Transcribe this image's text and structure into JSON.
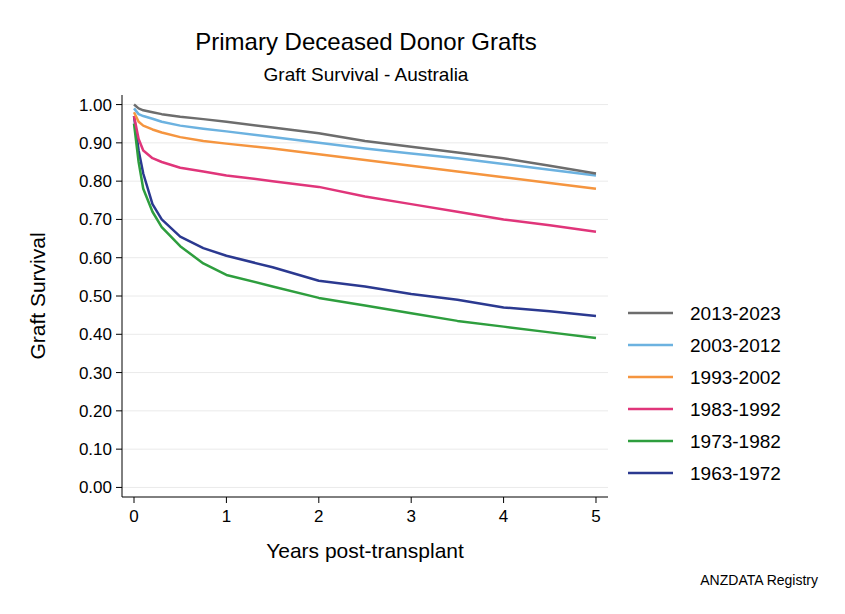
{
  "chart_data": {
    "type": "line",
    "title": "Primary Deceased Donor Grafts",
    "subtitle": "Graft Survival - Australia",
    "x_label": "Years post-transplant",
    "y_label": "Graft Survival",
    "annotations": [
      "ANZDATA Registry"
    ],
    "x": [
      0,
      0.05,
      0.1,
      0.2,
      0.3,
      0.5,
      0.75,
      1,
      1.5,
      2,
      2.5,
      3,
      3.5,
      4,
      4.5,
      5
    ],
    "series": [
      {
        "name": "2013-2023",
        "color": "#6d6d6d",
        "values": [
          1.0,
          0.99,
          0.985,
          0.98,
          0.975,
          0.968,
          0.962,
          0.955,
          0.94,
          0.925,
          0.905,
          0.89,
          0.875,
          0.86,
          0.84,
          0.82
        ]
      },
      {
        "name": "2003-2012",
        "color": "#6cb2e0",
        "values": [
          0.99,
          0.975,
          0.97,
          0.963,
          0.955,
          0.945,
          0.937,
          0.93,
          0.915,
          0.9,
          0.885,
          0.872,
          0.86,
          0.845,
          0.83,
          0.815
        ]
      },
      {
        "name": "1993-2002",
        "color": "#f5953f",
        "values": [
          0.98,
          0.955,
          0.945,
          0.935,
          0.927,
          0.915,
          0.905,
          0.898,
          0.885,
          0.87,
          0.855,
          0.84,
          0.825,
          0.81,
          0.795,
          0.78
        ]
      },
      {
        "name": "1983-1992",
        "color": "#e0357a",
        "values": [
          0.97,
          0.91,
          0.88,
          0.86,
          0.85,
          0.835,
          0.825,
          0.815,
          0.8,
          0.785,
          0.76,
          0.74,
          0.72,
          0.7,
          0.685,
          0.668
        ]
      },
      {
        "name": "1973-1982",
        "color": "#2e9e3e",
        "values": [
          0.95,
          0.85,
          0.78,
          0.72,
          0.68,
          0.63,
          0.585,
          0.555,
          0.525,
          0.495,
          0.475,
          0.455,
          0.435,
          0.42,
          0.405,
          0.39
        ]
      },
      {
        "name": "1963-1972",
        "color": "#2b3990",
        "values": [
          0.97,
          0.88,
          0.82,
          0.74,
          0.7,
          0.655,
          0.625,
          0.605,
          0.575,
          0.54,
          0.525,
          0.505,
          0.49,
          0.47,
          0.46,
          0.448
        ]
      }
    ],
    "xlim": [
      -0.13,
      5.13
    ],
    "ylim": [
      -0.025,
      1.025
    ],
    "xticks": [
      0,
      1,
      2,
      3,
      4,
      5
    ],
    "yticks": [
      {
        "value": 0,
        "label": "0.00"
      },
      {
        "value": 0.1,
        "label": "0.10"
      },
      {
        "value": 0.2,
        "label": "0.20"
      },
      {
        "value": 0.3,
        "label": "0.30"
      },
      {
        "value": 0.4,
        "label": "0.40"
      },
      {
        "value": 0.5,
        "label": "0.50"
      },
      {
        "value": 0.6,
        "label": "0.60"
      },
      {
        "value": 0.7,
        "label": "0.70"
      },
      {
        "value": 0.8,
        "label": "0.80"
      },
      {
        "value": 0.9,
        "label": "0.90"
      },
      {
        "value": 1,
        "label": "1.00"
      }
    ],
    "grid": true,
    "legend": "right"
  }
}
